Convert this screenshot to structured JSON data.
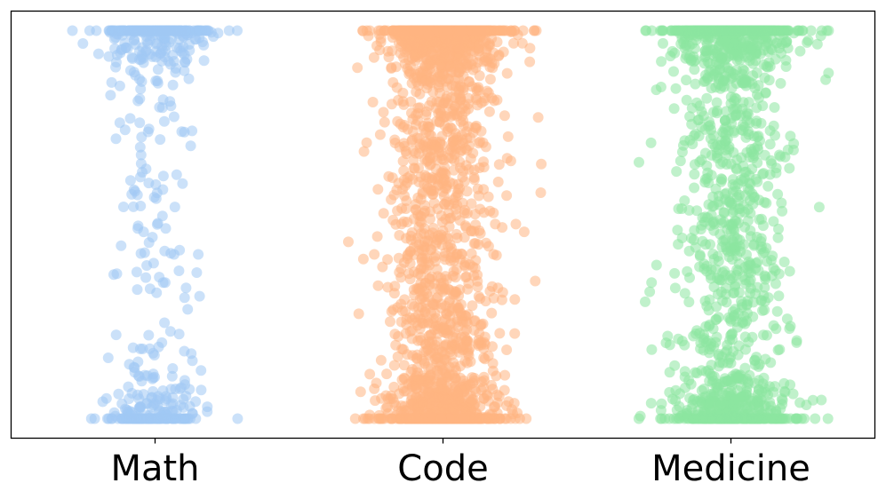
{
  "chart_data": {
    "type": "scatter",
    "categories": [
      "Math",
      "Code",
      "Medicine"
    ],
    "x_range": [
      -0.5,
      2.5
    ],
    "y_range": [
      0,
      1
    ],
    "y_axis_visible": false,
    "grid": false,
    "legend": "none",
    "marker_alpha": 0.55,
    "series": [
      {
        "category": "Math",
        "color": "#a1c9f4",
        "points": 600,
        "x_spread": [
          -0.25,
          0.25
        ],
        "distribution": "dense at top and bottom, sparse in middle"
      },
      {
        "category": "Code",
        "color": "#ffb482",
        "points": 2200,
        "x_spread": [
          -0.3,
          0.3
        ],
        "distribution": "dense throughout, widest at top and bottom"
      },
      {
        "category": "Medicine",
        "color": "#8de5a1",
        "points": 1600,
        "x_spread": [
          -0.28,
          0.3
        ],
        "distribution": "dense throughout, widest at top and bottom"
      }
    ]
  }
}
